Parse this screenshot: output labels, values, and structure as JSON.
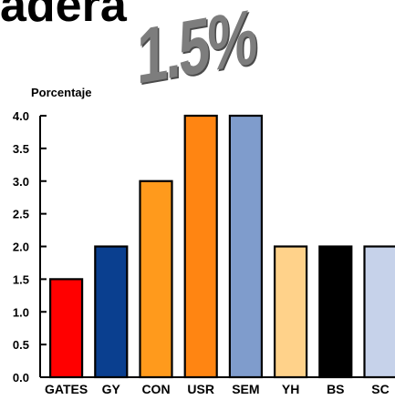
{
  "header_fragment": "adera",
  "chart_data": {
    "type": "bar",
    "title": "1.5%",
    "xlabel": "",
    "ylabel": "Porcentaje",
    "categories": [
      "GATES",
      "GY",
      "CON",
      "USR",
      "SEM",
      "YH",
      "BS",
      "SC"
    ],
    "values": [
      1.5,
      2.0,
      3.0,
      4.0,
      4.0,
      2.0,
      2.0,
      2.0
    ],
    "colors": [
      "#ff0000",
      "#0a3f8f",
      "#ff9a1c",
      "#ff8512",
      "#7f9ccc",
      "#ffd28a",
      "#000000",
      "#c6d2ea"
    ],
    "ylim": [
      0,
      4.0
    ],
    "yticks": [
      "0.0",
      "0.5",
      "1.0",
      "1.5",
      "2.0",
      "2.5",
      "3.0",
      "3.5",
      "4.0"
    ],
    "grid": false,
    "legend": "none"
  }
}
